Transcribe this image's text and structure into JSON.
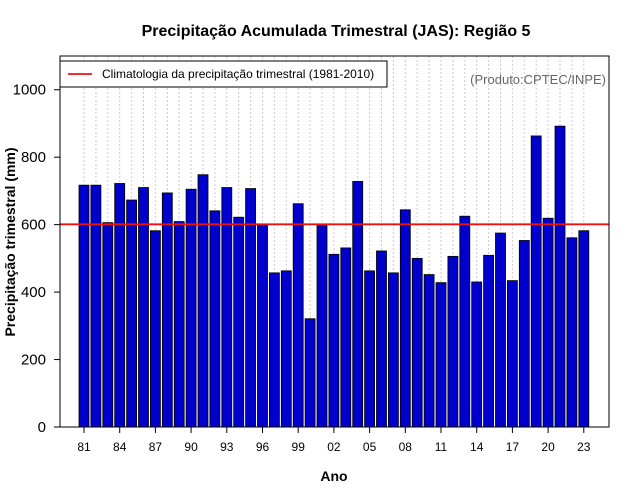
{
  "chart_data": {
    "type": "bar",
    "title": "Precipitação Acumulada Trimestral (JAS): Região 5",
    "xlabel": "Ano",
    "ylabel": "Precipitação trimestral (mm)",
    "ylim": [
      0,
      1100
    ],
    "yticks": [
      0,
      200,
      400,
      600,
      800,
      1000
    ],
    "grid": "vertical dotted",
    "credit": "(Produto:CPTEC/INPE)",
    "legend": {
      "position": "top-left",
      "label": "Climatologia da precipitação trimestral (1981-2010)",
      "color": "#ee1111"
    },
    "climatology": 601,
    "bar_color": "#0000cc",
    "categories": [
      "81",
      "82",
      "83",
      "84",
      "85",
      "86",
      "87",
      "88",
      "89",
      "90",
      "91",
      "92",
      "93",
      "94",
      "95",
      "96",
      "97",
      "98",
      "99",
      "00",
      "01",
      "02",
      "03",
      "04",
      "05",
      "06",
      "07",
      "08",
      "09",
      "10",
      "11",
      "12",
      "13",
      "14",
      "15",
      "16",
      "17",
      "18",
      "19",
      "20",
      "21",
      "22",
      "23"
    ],
    "tick_labels": [
      "81",
      "84",
      "87",
      "90",
      "93",
      "96",
      "99",
      "02",
      "05",
      "08",
      "11",
      "14",
      "17",
      "20",
      "23"
    ],
    "values": [
      717,
      717,
      606,
      722,
      673,
      710,
      582,
      694,
      609,
      705,
      748,
      641,
      710,
      622,
      707,
      601,
      457,
      463,
      662,
      321,
      597,
      512,
      531,
      728,
      463,
      522,
      457,
      644,
      500,
      452,
      428,
      506,
      625,
      430,
      509,
      575,
      434,
      553,
      863,
      619,
      892,
      561,
      582
    ]
  }
}
